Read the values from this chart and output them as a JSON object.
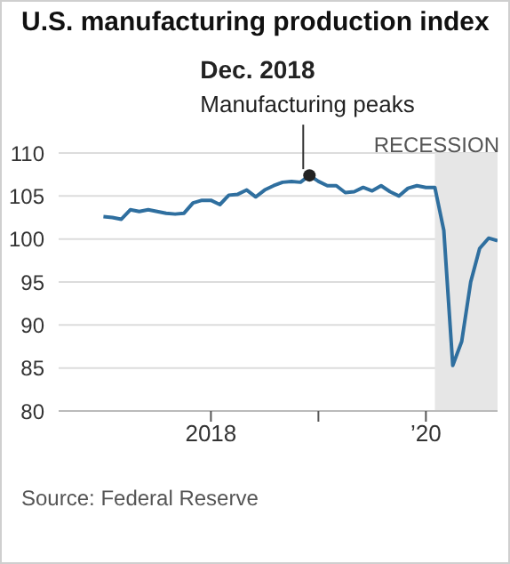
{
  "chart_data": {
    "type": "line",
    "title": "U.S. manufacturing production index",
    "x": [
      "2017-01",
      "2017-02",
      "2017-03",
      "2017-04",
      "2017-05",
      "2017-06",
      "2017-07",
      "2017-08",
      "2017-09",
      "2017-10",
      "2017-11",
      "2017-12",
      "2018-01",
      "2018-02",
      "2018-03",
      "2018-04",
      "2018-05",
      "2018-06",
      "2018-07",
      "2018-08",
      "2018-09",
      "2018-10",
      "2018-11",
      "2018-12",
      "2019-01",
      "2019-02",
      "2019-03",
      "2019-04",
      "2019-05",
      "2019-06",
      "2019-07",
      "2019-08",
      "2019-09",
      "2019-10",
      "2019-11",
      "2019-12",
      "2020-01",
      "2020-02",
      "2020-03",
      "2020-04",
      "2020-05",
      "2020-06",
      "2020-07",
      "2020-08",
      "2020-09"
    ],
    "series": [
      {
        "color": "#2f6f9f",
        "values": [
          102.6,
          102.5,
          102.3,
          103.4,
          103.2,
          103.4,
          103.2,
          103.0,
          102.9,
          103.0,
          104.2,
          104.5,
          104.5,
          104.0,
          105.1,
          105.2,
          105.7,
          104.9,
          105.7,
          106.2,
          106.6,
          106.7,
          106.6,
          107.4,
          106.7,
          106.2,
          106.2,
          105.4,
          105.5,
          106.0,
          105.6,
          106.2,
          105.5,
          105.0,
          105.9,
          106.2,
          106.0,
          106.0,
          101.0,
          85.3,
          88.1,
          95.0,
          98.9,
          100.1,
          99.8
        ]
      }
    ],
    "xlim": [
      "2016-08",
      "2020-09"
    ],
    "xticks": [
      {
        "value": "2018-01",
        "label": "2018"
      },
      {
        "value": "2019-01",
        "label": null
      },
      {
        "value": "2020-01",
        "label": "’20"
      }
    ],
    "ylim": [
      80,
      110
    ],
    "yticks": [
      80,
      85,
      90,
      95,
      100,
      105,
      110
    ],
    "grid": "y",
    "marker": "none",
    "line_style": "solid",
    "legend": false,
    "bands": [
      {
        "axis": "x",
        "from": "2020-02",
        "to": "2020-09",
        "label": "RECESSION",
        "color": "#e6e6e6"
      }
    ],
    "annotations": [
      "Dec. 2018",
      {
        "text": "Manufacturing peaks",
        "x": "2018-12",
        "y": 107.4
      },
      "Source: Federal Reserve"
    ]
  }
}
